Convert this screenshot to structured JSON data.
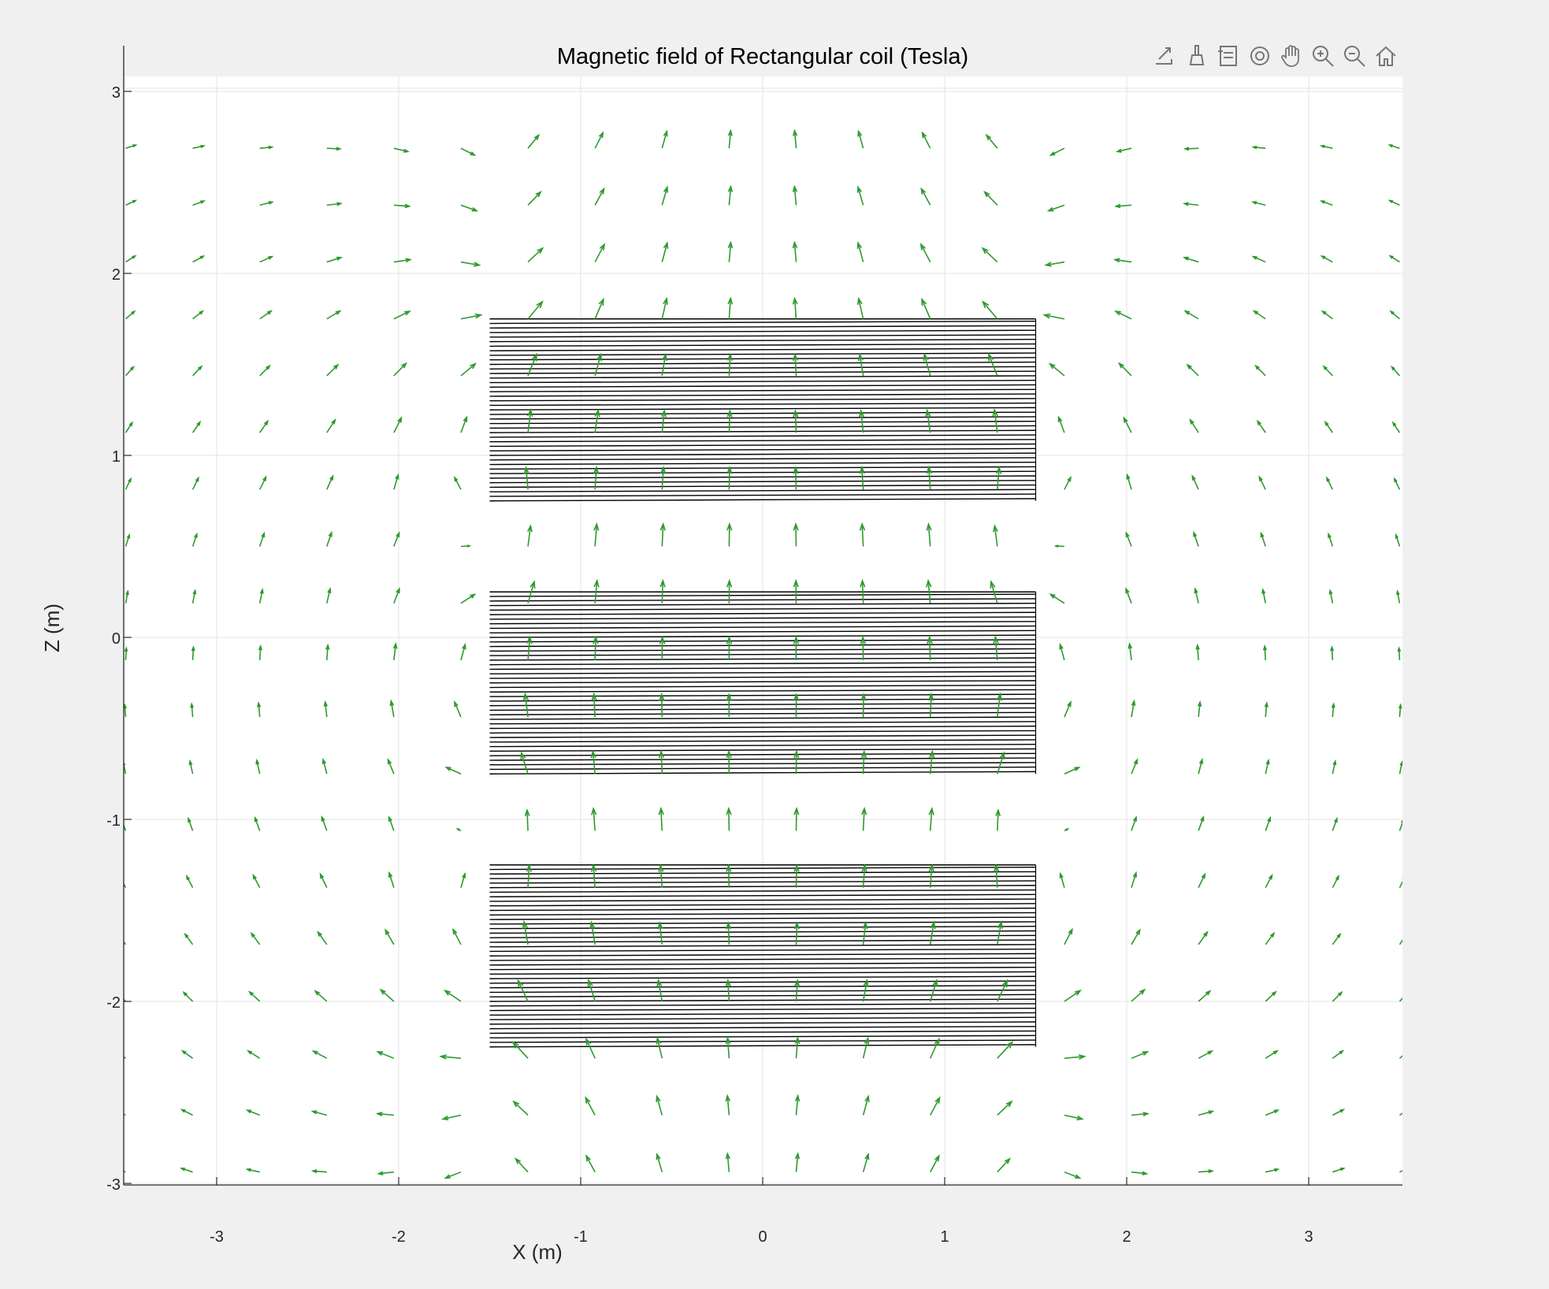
{
  "colors": {
    "arrow": "#2e9a2e",
    "coil": "#000000",
    "grid": "#e3e3e3",
    "axes_bg": "#ffffff",
    "figure_bg": "#f0f0f0"
  },
  "toolbar": [
    {
      "name": "export-icon"
    },
    {
      "name": "brush-icon"
    },
    {
      "name": "legend-icon"
    },
    {
      "name": "rotate-3d-icon"
    },
    {
      "name": "pan-hand-icon"
    },
    {
      "name": "zoom-in-icon"
    },
    {
      "name": "zoom-out-icon"
    },
    {
      "name": "home-icon"
    }
  ],
  "chart_data": {
    "type": "quiver",
    "title": "Magnetic field of Rectangular coil (Tesla)",
    "xlabel": "X (m)",
    "ylabel": "Z (m)",
    "xlim": [
      -3.5,
      3.5
    ],
    "ylim": [
      -3.25,
      3
    ],
    "xticks": [
      -3,
      -2,
      -1,
      0,
      1,
      2,
      3
    ],
    "yticks": [
      -3,
      -2,
      -1,
      0,
      1,
      2,
      3
    ],
    "grid": true,
    "coils": [
      {
        "x": [
          -1.5,
          1.5
        ],
        "z": [
          0.75,
          1.75
        ],
        "turns": 40
      },
      {
        "x": [
          -1.5,
          1.5
        ],
        "z": [
          -0.75,
          0.25
        ],
        "turns": 40
      },
      {
        "x": [
          -1.5,
          1.5
        ],
        "z": [
          -2.25,
          -1.25
        ],
        "turns": 40
      }
    ],
    "quiver_grid": {
      "x_start": -3.5,
      "x_step": 0.3684,
      "x_count": 20,
      "z_start": -3.25,
      "z_step": 0.3125,
      "z_count": 20
    }
  }
}
